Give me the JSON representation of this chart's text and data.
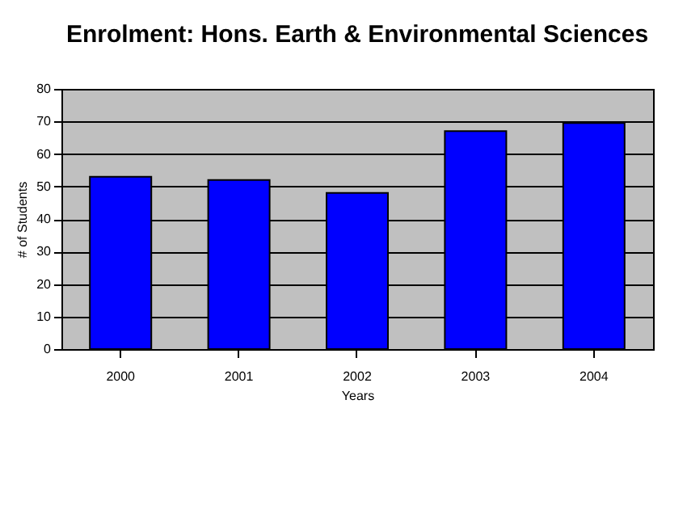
{
  "chart_data": {
    "type": "bar",
    "title": "Enrolment: Hons. Earth & Environmental Sciences",
    "xlabel": "Years",
    "ylabel": "# of Students",
    "categories": [
      "2000",
      "2001",
      "2002",
      "2003",
      "2004"
    ],
    "values": [
      53,
      52,
      48,
      67,
      69.5
    ],
    "color": "#0000ff",
    "ylim": [
      0,
      80
    ],
    "yticks": [
      0,
      10,
      20,
      30,
      40,
      50,
      60,
      70,
      80
    ],
    "grid": "y"
  }
}
